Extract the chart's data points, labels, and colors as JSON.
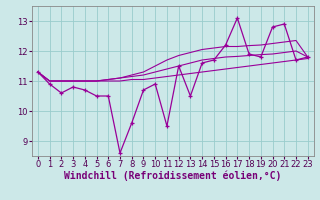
{
  "x": [
    0,
    1,
    2,
    3,
    4,
    5,
    6,
    7,
    8,
    9,
    10,
    11,
    12,
    13,
    14,
    15,
    16,
    17,
    18,
    19,
    20,
    21,
    22,
    23
  ],
  "y_main": [
    11.3,
    10.9,
    10.6,
    10.8,
    10.7,
    10.5,
    10.5,
    8.6,
    9.6,
    10.7,
    10.9,
    9.5,
    11.5,
    10.5,
    11.6,
    11.7,
    12.2,
    13.1,
    11.9,
    11.8,
    12.8,
    12.9,
    11.7,
    11.8
  ],
  "y_trend1": [
    11.3,
    11.0,
    11.0,
    11.0,
    11.0,
    11.0,
    11.0,
    11.0,
    11.05,
    11.05,
    11.1,
    11.15,
    11.2,
    11.25,
    11.3,
    11.35,
    11.4,
    11.45,
    11.5,
    11.55,
    11.6,
    11.65,
    11.7,
    11.75
  ],
  "y_trend2": [
    11.3,
    11.0,
    11.0,
    11.0,
    11.0,
    11.0,
    11.05,
    11.1,
    11.15,
    11.2,
    11.3,
    11.4,
    11.5,
    11.6,
    11.7,
    11.75,
    11.8,
    11.82,
    11.85,
    11.88,
    11.9,
    11.95,
    12.0,
    11.8
  ],
  "y_trend3": [
    11.3,
    11.0,
    11.0,
    11.0,
    11.0,
    11.0,
    11.05,
    11.1,
    11.2,
    11.3,
    11.5,
    11.7,
    11.85,
    11.95,
    12.05,
    12.1,
    12.15,
    12.15,
    12.18,
    12.2,
    12.25,
    12.3,
    12.35,
    11.8
  ],
  "color": "#990099",
  "bg_color": "#cce8e8",
  "grid_color": "#99cccc",
  "xlabel": "Windchill (Refroidissement éolien,°C)",
  "ylim": [
    8.5,
    13.5
  ],
  "xlim": [
    -0.5,
    23.5
  ],
  "yticks": [
    9,
    10,
    11,
    12,
    13
  ],
  "xticks": [
    0,
    1,
    2,
    3,
    4,
    5,
    6,
    7,
    8,
    9,
    10,
    11,
    12,
    13,
    14,
    15,
    16,
    17,
    18,
    19,
    20,
    21,
    22,
    23
  ],
  "tick_fontsize": 6,
  "xlabel_fontsize": 7
}
